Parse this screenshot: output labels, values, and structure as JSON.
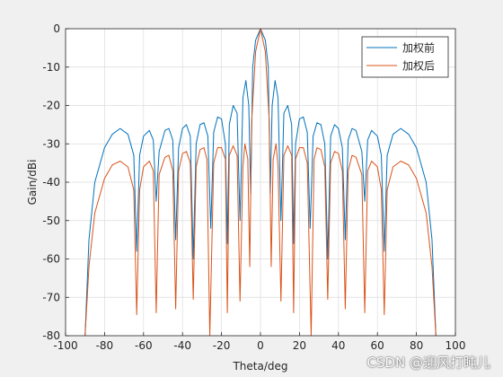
{
  "chart_data": {
    "type": "line",
    "xlabel": "Theta/deg",
    "ylabel": "Gain/dBi",
    "xlim": [
      -100,
      100
    ],
    "ylim": [
      -80,
      0
    ],
    "xticks": [
      -100,
      -80,
      -60,
      -40,
      -20,
      0,
      20,
      40,
      60,
      80,
      100
    ],
    "yticks": [
      0,
      -10,
      -20,
      -30,
      -40,
      -50,
      -60,
      -70,
      -80
    ],
    "grid": true,
    "legend_position": "top-right",
    "series": [
      {
        "name": "加权前",
        "color": "#0072BD",
        "points": [
          [
            -90,
            -80
          ],
          [
            -88,
            -55
          ],
          [
            -85,
            -40
          ],
          [
            -80,
            -31
          ],
          [
            -76,
            -27.5
          ],
          [
            -72,
            -26
          ],
          [
            -68,
            -27.5
          ],
          [
            -65,
            -33
          ],
          [
            -63.5,
            -58
          ],
          [
            -62,
            -33
          ],
          [
            -60,
            -28
          ],
          [
            -57,
            -26.5
          ],
          [
            -55,
            -29
          ],
          [
            -53.5,
            -45
          ],
          [
            -52,
            -32
          ],
          [
            -49,
            -26.5
          ],
          [
            -47,
            -26
          ],
          [
            -45,
            -29
          ],
          [
            -43.5,
            -55
          ],
          [
            -42,
            -31
          ],
          [
            -40,
            -26
          ],
          [
            -38,
            -25
          ],
          [
            -36,
            -28
          ],
          [
            -34.5,
            -60
          ],
          [
            -33,
            -30
          ],
          [
            -31,
            -25
          ],
          [
            -29,
            -24.5
          ],
          [
            -27,
            -28
          ],
          [
            -25.5,
            -52
          ],
          [
            -24,
            -27
          ],
          [
            -22,
            -23
          ],
          [
            -20,
            -23.5
          ],
          [
            -18,
            -30
          ],
          [
            -17,
            -56
          ],
          [
            -16,
            -25
          ],
          [
            -14,
            -20
          ],
          [
            -12,
            -22
          ],
          [
            -10.5,
            -50
          ],
          [
            -9,
            -18
          ],
          [
            -7.5,
            -13.5
          ],
          [
            -6,
            -20
          ],
          [
            -5,
            -43
          ],
          [
            -4,
            -10
          ],
          [
            -2.5,
            -3
          ],
          [
            0,
            0
          ],
          [
            2.5,
            -3
          ],
          [
            4,
            -10
          ],
          [
            5,
            -43
          ],
          [
            6,
            -20
          ],
          [
            7.5,
            -13.5
          ],
          [
            9,
            -18
          ],
          [
            10.5,
            -50
          ],
          [
            12,
            -22
          ],
          [
            14,
            -20
          ],
          [
            16,
            -25
          ],
          [
            17,
            -56
          ],
          [
            18,
            -30
          ],
          [
            20,
            -23.5
          ],
          [
            22,
            -23
          ],
          [
            24,
            -27
          ],
          [
            25.5,
            -52
          ],
          [
            27,
            -28
          ],
          [
            29,
            -24.5
          ],
          [
            31,
            -25
          ],
          [
            33,
            -30
          ],
          [
            34.5,
            -60
          ],
          [
            36,
            -28
          ],
          [
            38,
            -25
          ],
          [
            40,
            -26
          ],
          [
            42,
            -31
          ],
          [
            43.5,
            -55
          ],
          [
            45,
            -29
          ],
          [
            47,
            -26
          ],
          [
            49,
            -26.5
          ],
          [
            52,
            -32
          ],
          [
            53.5,
            -45
          ],
          [
            55,
            -29
          ],
          [
            57,
            -26.5
          ],
          [
            60,
            -28
          ],
          [
            62,
            -33
          ],
          [
            63.5,
            -58
          ],
          [
            65,
            -33
          ],
          [
            68,
            -27.5
          ],
          [
            72,
            -26
          ],
          [
            76,
            -27.5
          ],
          [
            80,
            -31
          ],
          [
            85,
            -40
          ],
          [
            88,
            -55
          ],
          [
            90,
            -80
          ]
        ]
      },
      {
        "name": "加权后",
        "color": "#D95319",
        "points": [
          [
            -90,
            -80
          ],
          [
            -88,
            -62
          ],
          [
            -85,
            -48
          ],
          [
            -80,
            -39
          ],
          [
            -76,
            -35.5
          ],
          [
            -72,
            -34.5
          ],
          [
            -68,
            -36
          ],
          [
            -65,
            -42
          ],
          [
            -63.5,
            -74.5
          ],
          [
            -62,
            -42
          ],
          [
            -60,
            -36
          ],
          [
            -57,
            -34.5
          ],
          [
            -55,
            -37
          ],
          [
            -53.5,
            -74
          ],
          [
            -52,
            -38
          ],
          [
            -49,
            -33.5
          ],
          [
            -47,
            -33
          ],
          [
            -45,
            -37
          ],
          [
            -43.5,
            -73
          ],
          [
            -42,
            -37
          ],
          [
            -40,
            -32.5
          ],
          [
            -38,
            -32
          ],
          [
            -36,
            -35
          ],
          [
            -34.5,
            -70.5
          ],
          [
            -33,
            -36
          ],
          [
            -31,
            -31.5
          ],
          [
            -29,
            -31
          ],
          [
            -27.5,
            -34
          ],
          [
            -26,
            -80
          ],
          [
            -24,
            -35
          ],
          [
            -22,
            -31
          ],
          [
            -20,
            -31
          ],
          [
            -18,
            -34
          ],
          [
            -17,
            -74
          ],
          [
            -16,
            -33
          ],
          [
            -14,
            -30.5
          ],
          [
            -12,
            -33
          ],
          [
            -10.5,
            -71
          ],
          [
            -9,
            -36
          ],
          [
            -8,
            -30
          ],
          [
            -6.5,
            -34
          ],
          [
            -5.5,
            -62
          ],
          [
            -4.5,
            -24
          ],
          [
            -2.5,
            -6
          ],
          [
            0,
            0
          ],
          [
            2.5,
            -6
          ],
          [
            4.5,
            -24
          ],
          [
            5.5,
            -62
          ],
          [
            6.5,
            -34
          ],
          [
            8,
            -30
          ],
          [
            9,
            -36
          ],
          [
            10.5,
            -71
          ],
          [
            12,
            -33
          ],
          [
            14,
            -30.5
          ],
          [
            16,
            -33
          ],
          [
            17,
            -74
          ],
          [
            18,
            -34
          ],
          [
            20,
            -31
          ],
          [
            22,
            -31
          ],
          [
            24,
            -35
          ],
          [
            26,
            -80
          ],
          [
            27.5,
            -34
          ],
          [
            29,
            -31
          ],
          [
            31,
            -31.5
          ],
          [
            33,
            -36
          ],
          [
            34.5,
            -70.5
          ],
          [
            36,
            -35
          ],
          [
            38,
            -32
          ],
          [
            40,
            -32.5
          ],
          [
            42,
            -37
          ],
          [
            43.5,
            -73
          ],
          [
            45,
            -37
          ],
          [
            47,
            -33
          ],
          [
            49,
            -33.5
          ],
          [
            52,
            -38
          ],
          [
            53.5,
            -74
          ],
          [
            55,
            -37
          ],
          [
            57,
            -34.5
          ],
          [
            60,
            -36
          ],
          [
            62,
            -42
          ],
          [
            63.5,
            -74.5
          ],
          [
            65,
            -42
          ],
          [
            68,
            -36
          ],
          [
            72,
            -34.5
          ],
          [
            76,
            -35.5
          ],
          [
            80,
            -39
          ],
          [
            85,
            -48
          ],
          [
            88,
            -62
          ],
          [
            90,
            -80
          ]
        ]
      }
    ]
  },
  "watermark": "CSDN @迎风打盹儿"
}
